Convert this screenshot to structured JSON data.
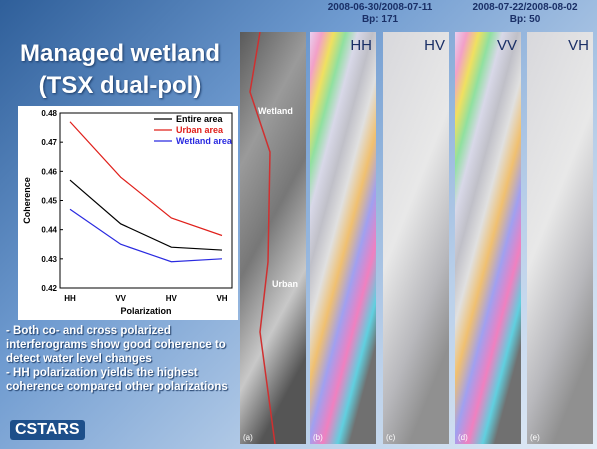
{
  "title": [
    "Managed wetland",
    "(TSX dual-pol)"
  ],
  "bullets": [
    "- Both co- and cross polarized interferograms show good coherence to detect water level changes",
    "- HH polarization yields the highest coherence compared other polarizations"
  ],
  "logo": "CSTARS",
  "pairs": [
    {
      "dates": "2008-06-30/2008-07-11",
      "baseline": "Bp: 171"
    },
    {
      "dates": "2008-07-22/2008-08-02",
      "baseline": "Bp: 50"
    }
  ],
  "panels": [
    {
      "tag": "(a)"
    },
    {
      "tag": "(b)",
      "pol": "HH"
    },
    {
      "tag": "(c)",
      "pol": "HV"
    },
    {
      "tag": "(d)",
      "pol": "VV"
    },
    {
      "tag": "(e)",
      "pol": "VH"
    }
  ],
  "region_labels": [
    "Wetland",
    "Urban"
  ],
  "chart_data": {
    "type": "line",
    "xlabel": "Polarization",
    "ylabel": "Coherence",
    "categories": [
      "HH",
      "VV",
      "HV",
      "VH"
    ],
    "series": [
      {
        "name": "Entire area",
        "color": "#000000",
        "values": [
          0.457,
          0.442,
          0.434,
          0.433
        ]
      },
      {
        "name": "Urban area",
        "color": "#e0201b",
        "values": [
          0.477,
          0.458,
          0.444,
          0.438
        ]
      },
      {
        "name": "Wetland area",
        "color": "#2a2ae0",
        "values": [
          0.447,
          0.435,
          0.429,
          0.43
        ]
      }
    ],
    "ylim": [
      0.42,
      0.48
    ],
    "yticks": [
      0.42,
      0.43,
      0.44,
      0.45,
      0.46,
      0.47,
      0.48
    ],
    "legend": "upper right"
  }
}
